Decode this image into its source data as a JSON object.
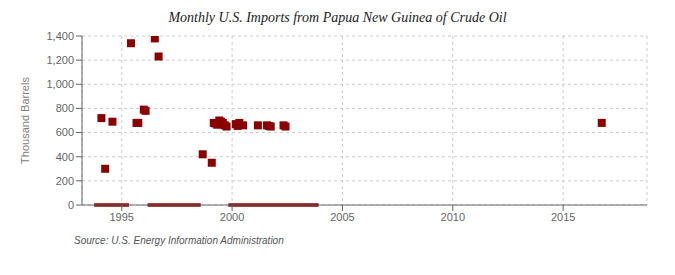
{
  "chart_data": {
    "type": "scatter",
    "title": "Monthly U.S. Imports from Papua New Guinea of Crude Oil",
    "ylabel": "Thousand Barrels",
    "annotation": "Source: U.S. Energy Information Administration",
    "color": "#8B0000",
    "marker": "square",
    "grid": true,
    "xlim": [
      1993.2,
      2018.8
    ],
    "xticks": [
      1995,
      2000,
      2005,
      2010,
      2015
    ],
    "ylim": [
      0,
      1400
    ],
    "yticks": [
      0,
      200,
      400,
      600,
      800,
      {
        "value": 1000,
        "label": "1,000"
      },
      {
        "value": 1200,
        "label": "1,200"
      },
      {
        "value": 1400,
        "label": "1,400"
      }
    ],
    "x": [
      1994.08,
      1994.25,
      1994.58,
      1995.42,
      1995.67,
      1995.75,
      1996.0,
      1996.08,
      1996.5,
      1996.67,
      1998.67,
      1999.08,
      1999.17,
      1999.25,
      1999.33,
      1999.42,
      1999.5,
      1999.58,
      1999.67,
      1999.75,
      2000.17,
      2000.25,
      2000.33,
      2000.5,
      2001.17,
      2001.58,
      2001.67,
      2001.75,
      2002.33,
      2002.42,
      2016.75
    ],
    "values": [
      720,
      300,
      690,
      1340,
      680,
      680,
      790,
      780,
      1380,
      1230,
      420,
      350,
      680,
      675,
      665,
      700,
      690,
      680,
      660,
      650,
      670,
      655,
      680,
      660,
      660,
      660,
      655,
      650,
      660,
      650,
      680
    ],
    "zero_segments": [
      [
        1993.75,
        1995.33
      ],
      [
        1996.17,
        1998.58
      ],
      [
        1999.83,
        2003.92
      ]
    ]
  }
}
